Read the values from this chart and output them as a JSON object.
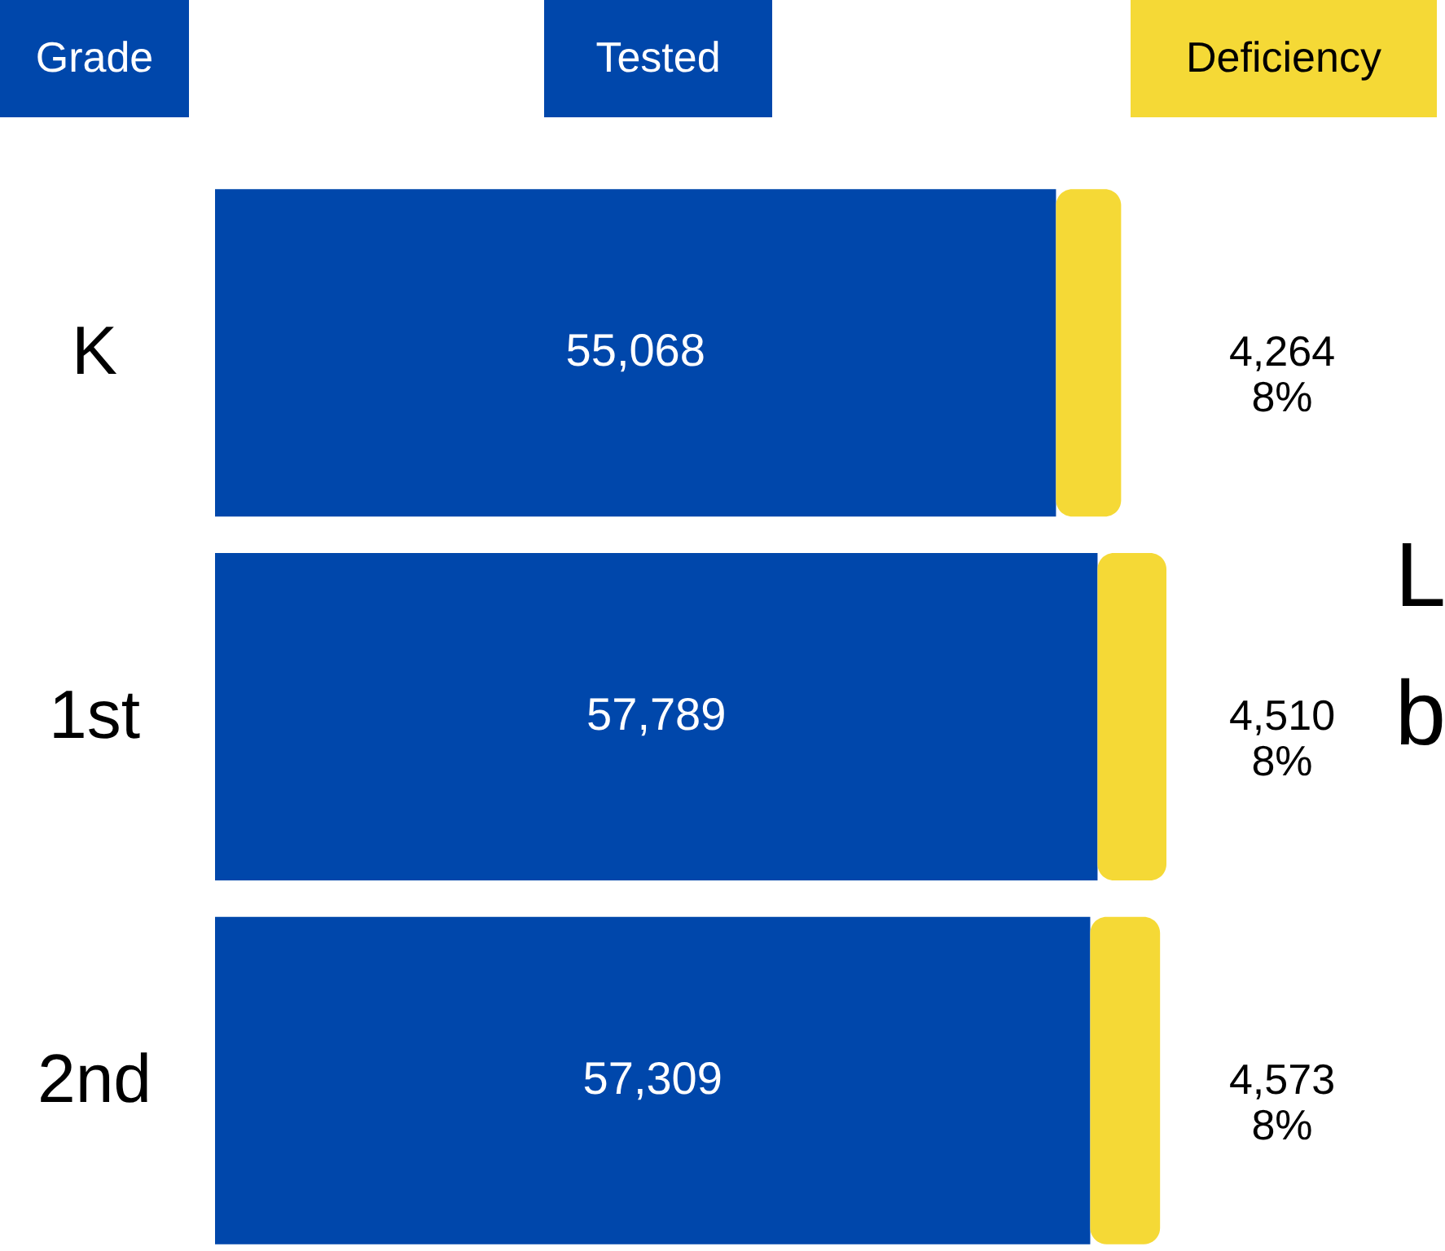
{
  "chart_data": {
    "type": "bar",
    "orientation": "horizontal",
    "stacked": true,
    "ylabel": "Grade",
    "legend": "top",
    "categories": [
      "K",
      "1st",
      "2nd"
    ],
    "series": [
      {
        "name": "Tested",
        "color": "#0047ab",
        "values": [
          55068,
          57789,
          57309
        ],
        "value_labels": [
          "55,068",
          "57,789",
          "57,309"
        ]
      },
      {
        "name": "Deficiency",
        "color": "#f5d936",
        "values": [
          4264,
          4510,
          4573
        ],
        "value_labels": [
          "4,264\n8%",
          "4,510\n8%",
          "4,573\n8%"
        ]
      }
    ],
    "annotations": [
      "L",
      "b"
    ]
  }
}
